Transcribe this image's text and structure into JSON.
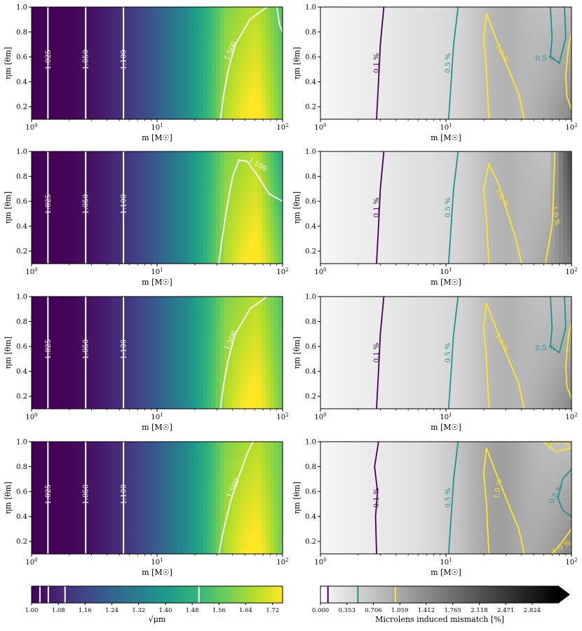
{
  "figure": {
    "colorbar_left": {
      "label": "√μm",
      "ticks": [
        "1.00",
        "1.08",
        "1.16",
        "1.24",
        "1.32",
        "1.40",
        "1.48",
        "1.56",
        "1.64",
        "1.72"
      ],
      "range": [
        1.0,
        1.75
      ],
      "line_levels": [
        1.025,
        1.05,
        1.1,
        1.5
      ],
      "colormap": "viridis"
    },
    "colorbar_right": {
      "label": "Microlens induced mismatch [%]",
      "ticks": [
        "0.000",
        "0.353",
        "0.706",
        "1.059",
        "1.412",
        "1.765",
        "2.118",
        "2.471",
        "2.824"
      ],
      "range": [
        0.0,
        3.18
      ],
      "line_levels": [
        {
          "value": 0.1,
          "color": "#440154"
        },
        {
          "value": 0.5,
          "color": "#21918c"
        },
        {
          "value": 1.0,
          "color": "#fde725"
        }
      ],
      "colormap": "gray_r",
      "extend": "max"
    }
  },
  "chart_data": [
    {
      "panel": "row1-left",
      "type": "contour",
      "xlabel": "m [M☉]",
      "ylabel": "ηm [θm]",
      "xscale": "log",
      "xlim": [
        1,
        100
      ],
      "ylim": [
        0.1,
        1.0
      ],
      "xticks": [
        "10^0",
        "10^1",
        "10^2"
      ],
      "yticks": [
        "0.2",
        "0.4",
        "0.6",
        "0.8",
        "1.0"
      ],
      "contour_labels": [
        "1.025",
        "1.050",
        "1.100",
        "1.500"
      ],
      "contour_x": [
        {
          "level": 1.025,
          "m": 1.35
        },
        {
          "level": 1.05,
          "m": 2.7
        },
        {
          "level": 1.1,
          "m": 5.4
        },
        {
          "level": 1.5,
          "m": 35
        }
      ]
    },
    {
      "panel": "row1-right",
      "type": "contour",
      "xlabel": "m [M☉]",
      "ylabel": "ηm [θm]",
      "xscale": "log",
      "xlim": [
        1,
        100
      ],
      "ylim": [
        0.1,
        1.0
      ],
      "xticks": [
        "10^0",
        "10^1",
        "10^2"
      ],
      "yticks": [
        "0.2",
        "0.4",
        "0.6",
        "0.8",
        "1.0"
      ],
      "contour_labels": [
        "0.1 %",
        "0.5 %",
        "1.0 %",
        "0.5 %"
      ]
    },
    {
      "panel": "row2-left",
      "type": "contour",
      "xlabel": "m [M☉]",
      "ylabel": "ηm [θm]",
      "xscale": "log",
      "xlim": [
        1,
        100
      ],
      "ylim": [
        0.1,
        1.0
      ],
      "xticks": [
        "10^0",
        "10^1",
        "10^2"
      ],
      "yticks": [
        "0.2",
        "0.4",
        "0.6",
        "0.8",
        "1.0"
      ],
      "contour_labels": [
        "1.025",
        "1.050",
        "1.100",
        "1.500"
      ]
    },
    {
      "panel": "row2-right",
      "type": "contour",
      "xlabel": "m [M☉]",
      "ylabel": "ηm [θm]",
      "xscale": "log",
      "xlim": [
        1,
        100
      ],
      "ylim": [
        0.1,
        1.0
      ],
      "xticks": [
        "10^0",
        "10^1",
        "10^2"
      ],
      "yticks": [
        "0.2",
        "0.4",
        "0.6",
        "0.8",
        "1.0"
      ],
      "contour_labels": [
        "0.1 %",
        "0.5 %",
        "1.0 %",
        "1.0 %"
      ]
    },
    {
      "panel": "row3-left",
      "type": "contour",
      "xlabel": "m [M☉]",
      "ylabel": "ηm [θm]",
      "xscale": "log",
      "xlim": [
        1,
        100
      ],
      "ylim": [
        0.1,
        1.0
      ],
      "xticks": [
        "10^0",
        "10^1",
        "10^2"
      ],
      "yticks": [
        "0.2",
        "0.4",
        "0.6",
        "0.8",
        "1.0"
      ],
      "contour_labels": [
        "1.025",
        "1.050",
        "1.100",
        "1.500"
      ]
    },
    {
      "panel": "row3-right",
      "type": "contour",
      "xlabel": "m [M☉]",
      "ylabel": "ηm [θm]",
      "xscale": "log",
      "xlim": [
        1,
        100
      ],
      "ylim": [
        0.1,
        1.0
      ],
      "xticks": [
        "10^0",
        "10^1",
        "10^2"
      ],
      "yticks": [
        "0.2",
        "0.4",
        "0.6",
        "0.8",
        "1.0"
      ],
      "contour_labels": [
        "0.1 %",
        "0.5 %",
        "1.0 %",
        "0.5 %"
      ]
    },
    {
      "panel": "row4-left",
      "type": "contour",
      "xlabel": "m [M☉]",
      "ylabel": "ηm [θm]",
      "xscale": "log",
      "xlim": [
        1,
        100
      ],
      "ylim": [
        0.1,
        1.0
      ],
      "xticks": [
        "10^0",
        "10^1",
        "10^2"
      ],
      "yticks": [
        "0.2",
        "0.4",
        "0.6",
        "0.8",
        "1.0"
      ],
      "contour_labels": [
        "1.025",
        "1.050",
        "1.100",
        "1.500"
      ]
    },
    {
      "panel": "row4-right",
      "type": "contour",
      "xlabel": "m [M☉]",
      "ylabel": "ηm [θm]",
      "xscale": "log",
      "xlim": [
        1,
        100
      ],
      "ylim": [
        0.1,
        1.0
      ],
      "xticks": [
        "10^0",
        "10^1",
        "10^2"
      ],
      "yticks": [
        "0.2",
        "0.4",
        "0.6",
        "0.8",
        "1.0"
      ],
      "contour_labels": [
        "0.1 %",
        "0.5 %",
        "1.0 %",
        "0.5 %",
        "1.0 %",
        "1.0 %"
      ]
    }
  ]
}
